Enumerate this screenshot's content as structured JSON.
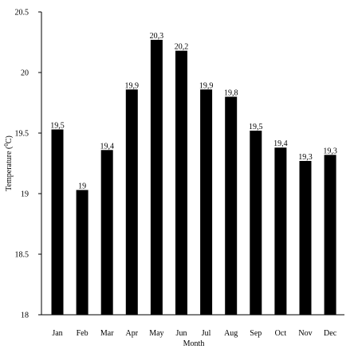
{
  "chart_data": {
    "type": "bar",
    "title": "",
    "xlabel": "Month",
    "ylabel_main": "Temperature (",
    "ylabel_sup": "0",
    "ylabel_unit": "C)",
    "categories": [
      "Jan",
      "Feb",
      "Mar",
      "Apr",
      "May",
      "Jun",
      "Jul",
      "Aug",
      "Sep",
      "Oct",
      "Nov",
      "Dec"
    ],
    "values": [
      19.53,
      19.03,
      19.36,
      19.86,
      20.27,
      20.18,
      19.86,
      19.8,
      19.52,
      19.38,
      19.27,
      19.32
    ],
    "data_labels": [
      "19,5",
      "19",
      "19,4",
      "19,9",
      "20,3",
      "20,2",
      "19,9",
      "19,8",
      "19,5",
      "19,4",
      "19,3",
      "19,3"
    ],
    "ylim": [
      18,
      20.5
    ],
    "y_ticks": [
      18,
      18.5,
      19,
      19.5,
      20,
      20.5
    ],
    "y_tick_labels": [
      "18",
      "18.5",
      "19",
      "19.5",
      "20",
      "20.5"
    ],
    "grid": false,
    "legend": "none",
    "bar_color": "#000000"
  }
}
